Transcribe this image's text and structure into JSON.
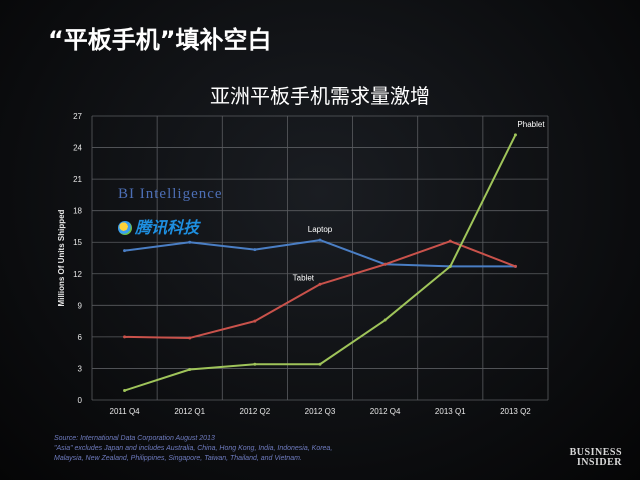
{
  "header": {
    "slide_title": "“平板手机”填补空白",
    "chart_title": "亚洲平板手机需求量激增"
  },
  "watermarks": {
    "bi_intelligence": "BI Intelligence",
    "tencent": "腾讯科技"
  },
  "footer": {
    "source_line1": "Source: International Data Corporation August 2013",
    "source_line2": "\"Asia\" excludes Japan and includes Australia, China, Hong Kong, India, Indonesia, Korea,",
    "source_line3": "Malaysia, New Zealand, Philippines, Singapore, Taiwan, Thailand, and Vietnam.",
    "logo_line1": "BUSINESS",
    "logo_line2": "INSIDER"
  },
  "colors": {
    "laptop": "#4a7ec4",
    "tablet": "#c9524b",
    "phablet": "#9fc45a",
    "grid": "#5a5c60",
    "axis_text": "#e8e8e8"
  },
  "chart_data": {
    "type": "line",
    "title": "亚洲平板手机需求量激增",
    "xlabel": "",
    "ylabel": "Millions Of Units Shipped",
    "categories": [
      "2011 Q4",
      "2012 Q1",
      "2012 Q2",
      "2012 Q3",
      "2012 Q4",
      "2013 Q1",
      "2013 Q2"
    ],
    "yticks": [
      0,
      3,
      6,
      9,
      12,
      15,
      18,
      21,
      24,
      27
    ],
    "ylim": [
      0,
      27
    ],
    "grid": true,
    "series": [
      {
        "name": "Laptop",
        "values": [
          14.2,
          15.0,
          14.3,
          15.2,
          12.9,
          12.7,
          12.7
        ]
      },
      {
        "name": "Tablet",
        "values": [
          6.0,
          5.9,
          7.5,
          11.0,
          12.9,
          15.1,
          12.7
        ]
      },
      {
        "name": "Phablet",
        "values": [
          0.9,
          2.9,
          3.4,
          3.4,
          7.6,
          12.7,
          25.2
        ]
      }
    ]
  }
}
